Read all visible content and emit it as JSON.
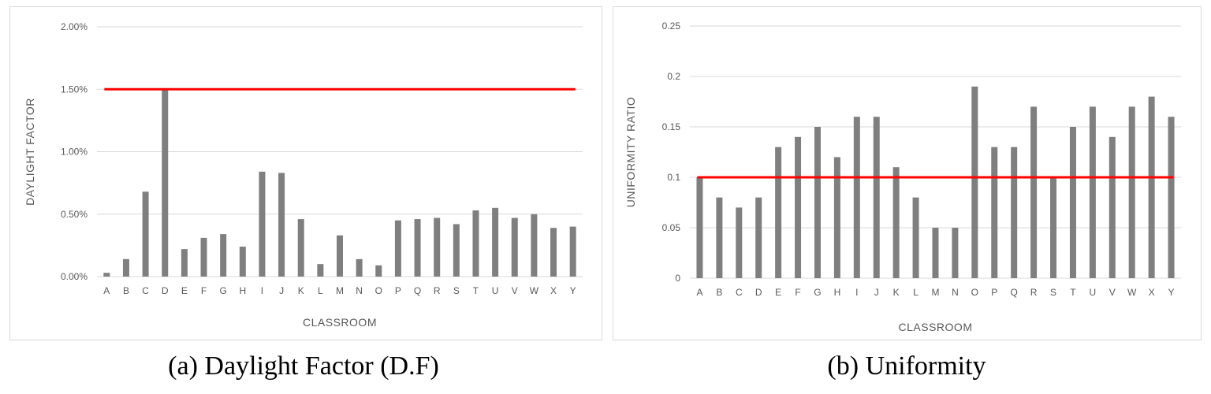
{
  "captions": [
    "(a) Daylight Factor (D.F)",
    "(b) Uniformity"
  ],
  "chart_data": [
    {
      "type": "bar",
      "title": "",
      "xlabel": "CLASSROOM",
      "ylabel": "DAYLIGHT FACTOR",
      "categories": [
        "A",
        "B",
        "C",
        "D",
        "E",
        "F",
        "G",
        "H",
        "I",
        "J",
        "K",
        "L",
        "M",
        "N",
        "O",
        "P",
        "Q",
        "R",
        "S",
        "T",
        "U",
        "V",
        "W",
        "X",
        "Y"
      ],
      "series": [
        {
          "values": [
            0.03,
            0.14,
            0.68,
            1.5,
            0.22,
            0.31,
            0.34,
            0.24,
            0.84,
            0.83,
            0.46,
            0.1,
            0.33,
            0.14,
            0.09,
            0.45,
            0.46,
            0.47,
            0.42,
            0.53,
            0.55,
            0.47,
            0.5,
            0.39,
            0.4
          ]
        }
      ],
      "ylim": [
        0,
        2
      ],
      "yticks": [
        "0.00%",
        "0.50%",
        "1.00%",
        "1.50%",
        "2.00%"
      ],
      "ytick_values": [
        0,
        0.5,
        1.0,
        1.5,
        2.0
      ],
      "threshold": 1.5,
      "colors": {
        "bar": "#7f7f7f",
        "threshold": "#ff0000",
        "grid": "#d9d9d9"
      },
      "grid": true
    },
    {
      "type": "bar",
      "title": "",
      "xlabel": "CLASSROOM",
      "ylabel": "UNIFORMITY RATIO",
      "categories": [
        "A",
        "B",
        "C",
        "D",
        "E",
        "F",
        "G",
        "H",
        "I",
        "J",
        "K",
        "L",
        "M",
        "N",
        "O",
        "P",
        "Q",
        "R",
        "S",
        "T",
        "U",
        "V",
        "W",
        "X",
        "Y"
      ],
      "series": [
        {
          "values": [
            0.1,
            0.08,
            0.07,
            0.08,
            0.13,
            0.14,
            0.15,
            0.12,
            0.16,
            0.16,
            0.11,
            0.08,
            0.05,
            0.05,
            0.19,
            0.13,
            0.13,
            0.17,
            0.1,
            0.15,
            0.17,
            0.14,
            0.17,
            0.18,
            0.16
          ]
        }
      ],
      "ylim": [
        0,
        0.25
      ],
      "yticks": [
        "0",
        "0.05",
        "0.1",
        "0.15",
        "0.2",
        "0.25"
      ],
      "ytick_values": [
        0,
        0.05,
        0.1,
        0.15,
        0.2,
        0.25
      ],
      "threshold": 0.1,
      "colors": {
        "bar": "#7f7f7f",
        "threshold": "#ff0000",
        "grid": "#d9d9d9"
      },
      "grid": true
    }
  ]
}
